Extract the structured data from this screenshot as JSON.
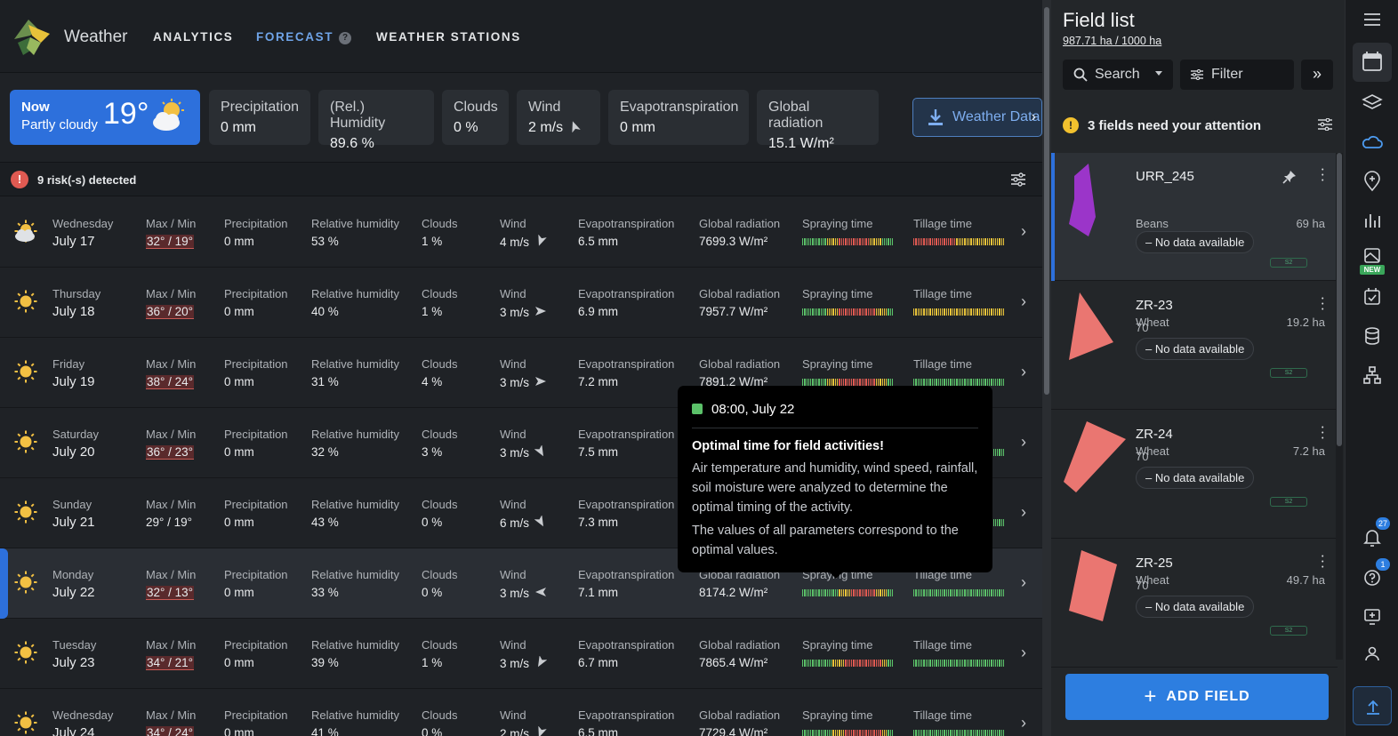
{
  "app": {
    "title": "Weather"
  },
  "nav": {
    "analytics": "ANALYTICS",
    "forecast": "FORECAST",
    "forecast_help": "?",
    "stations": "WEATHER STATIONS"
  },
  "now": {
    "label": "Now",
    "condition": "Partly cloudy",
    "temp": "19°",
    "icon": "partly-cloudy-icon"
  },
  "cards": [
    {
      "label": "Precipitation",
      "value": "0 mm"
    },
    {
      "label": "(Rel.) Humidity",
      "value": "89.6 %"
    },
    {
      "label": "Clouds",
      "value": "0 %"
    },
    {
      "label": "Wind",
      "value": "2 m/s"
    },
    {
      "label": "Evapotranspiration",
      "value": "0 mm"
    },
    {
      "label": "Global radiation",
      "value": "15.1 W/m²"
    }
  ],
  "weather_data_button": "Weather Data",
  "risk": {
    "icon": "!",
    "text": "9 risk(-s) detected"
  },
  "row_labels": {
    "maxmin": "Max / Min",
    "precip": "Precipitation",
    "humidity": "Relative humidity",
    "clouds": "Clouds",
    "wind": "Wind",
    "evapo": "Evapotranspiration",
    "radiation": "Global radiation",
    "spraying": "Spraying time",
    "tillage": "Tillage time"
  },
  "forecast": [
    {
      "weekday": "Wednesday",
      "date": "July 17",
      "icon": "partly-cloudy-icon",
      "maxmin": "32° / 19°",
      "risk": true,
      "precip": "0 mm",
      "humidity": "53 %",
      "clouds": "1 %",
      "wind": "4 m/s",
      "wind_dir": 200,
      "evapo": "6.5 mm",
      "radiation": "7699.3 W/m²",
      "spray": "GGGGYYRRRRRYYGG",
      "till": "RRRRRRRYYYYYYYY"
    },
    {
      "weekday": "Thursday",
      "date": "July 18",
      "icon": "sun-icon",
      "maxmin": "36° / 20°",
      "risk": true,
      "precip": "0 mm",
      "humidity": "40 %",
      "clouds": "1 %",
      "wind": "3 m/s",
      "wind_dir": 90,
      "evapo": "6.9 mm",
      "radiation": "7957.7 W/m²",
      "spray": "GGGGYYRRRRRRYYG",
      "till": "YYYYYYYYYYYYYYY"
    },
    {
      "weekday": "Friday",
      "date": "July 19",
      "icon": "sun-icon",
      "maxmin": "38° / 24°",
      "risk": true,
      "precip": "0 mm",
      "humidity": "31 %",
      "clouds": "4 %",
      "wind": "3 m/s",
      "wind_dir": 90,
      "evapo": "7.2 mm",
      "radiation": "7891.2 W/m²",
      "spray": "GGGGYYRRRRRRYYG",
      "till": "GGGGGGGGGGGGGGG"
    },
    {
      "weekday": "Saturday",
      "date": "July 20",
      "icon": "sun-icon",
      "maxmin": "36° / 23°",
      "risk": true,
      "precip": "0 mm",
      "humidity": "32 %",
      "clouds": "3 %",
      "wind": "3 m/s",
      "wind_dir": 150,
      "evapo": "7.5 mm",
      "radiation": "",
      "spray": "",
      "till": "GGGGGGGGGGGGGGG"
    },
    {
      "weekday": "Sunday",
      "date": "July 21",
      "icon": "sun-icon",
      "maxmin": "29° / 19°",
      "risk": false,
      "precip": "0 mm",
      "humidity": "43 %",
      "clouds": "0 %",
      "wind": "6 m/s",
      "wind_dir": 150,
      "evapo": "7.3 mm",
      "radiation": "",
      "spray": "",
      "till": "GGGGGGGGGGGGGGG"
    },
    {
      "weekday": "Monday",
      "date": "July 22",
      "icon": "sun-icon",
      "maxmin": "32° / 13°",
      "risk": true,
      "precip": "0 mm",
      "humidity": "33 %",
      "clouds": "0 %",
      "wind": "3 m/s",
      "wind_dir": 270,
      "evapo": "7.1 mm",
      "radiation": "8174.2 W/m²",
      "spray": "GGGGGGYYRRRRYYG",
      "till": "GGGGGGGGGGGGGGG"
    },
    {
      "weekday": "Tuesday",
      "date": "July 23",
      "icon": "sun-icon",
      "maxmin": "34° / 21°",
      "risk": true,
      "precip": "0 mm",
      "humidity": "39 %",
      "clouds": "1 %",
      "wind": "3 m/s",
      "wind_dir": 210,
      "evapo": "6.7 mm",
      "radiation": "7865.4 W/m²",
      "spray": "GGGGGYYRRRRRRYG",
      "till": "GGGGGGGGGGGGGGG"
    },
    {
      "weekday": "Wednesday",
      "date": "July 24",
      "icon": "sun-icon",
      "maxmin": "34° / 24°",
      "risk": true,
      "precip": "0 mm",
      "humidity": "41 %",
      "clouds": "0 %",
      "wind": "2 m/s",
      "wind_dir": 200,
      "evapo": "6.5 mm",
      "radiation": "7729.4 W/m²",
      "spray": "GGGGGYYRRRRRRYG",
      "till": "GGGGGGGGGGGGGGG"
    }
  ],
  "tooltip": {
    "time": "08:00,  July 22",
    "title": "Optimal time for field activities!",
    "body": "Air temperature and humidity, wind speed, rainfall, soil moisture were analyzed to determine the optimal timing of the activity.",
    "body2": "The values of all parameters correspond to the optimal values."
  },
  "panel": {
    "title": "Field list",
    "area": "987.71 ha / 1000 ha",
    "search": "Search",
    "filter": "Filter",
    "attention": "3 fields need your attention",
    "no_data": "No data available",
    "s2": "S2",
    "add_field": "ADD FIELD"
  },
  "fields": [
    {
      "name": "URR_245",
      "count": "",
      "crop": "Beans",
      "area": "69 ha",
      "color": "#9b35c9"
    },
    {
      "name": "ZR-23",
      "count": "70",
      "crop": "Wheat",
      "area": "19.2 ha",
      "color": "#ea7671"
    },
    {
      "name": "ZR-24",
      "count": "70",
      "crop": "Wheat",
      "area": "7.2 ha",
      "color": "#ea7671"
    },
    {
      "name": "ZR-25",
      "count": "70",
      "crop": "Wheat",
      "area": "49.7 ha",
      "color": "#ea7671"
    }
  ],
  "rail": {
    "notifications_badge": "27",
    "help_badge": "1",
    "new_label": "NEW"
  },
  "colors": {
    "accent": "#2d70dc",
    "good": "#5bc169",
    "warn": "#e8c33a",
    "bad": "#e05a52"
  }
}
